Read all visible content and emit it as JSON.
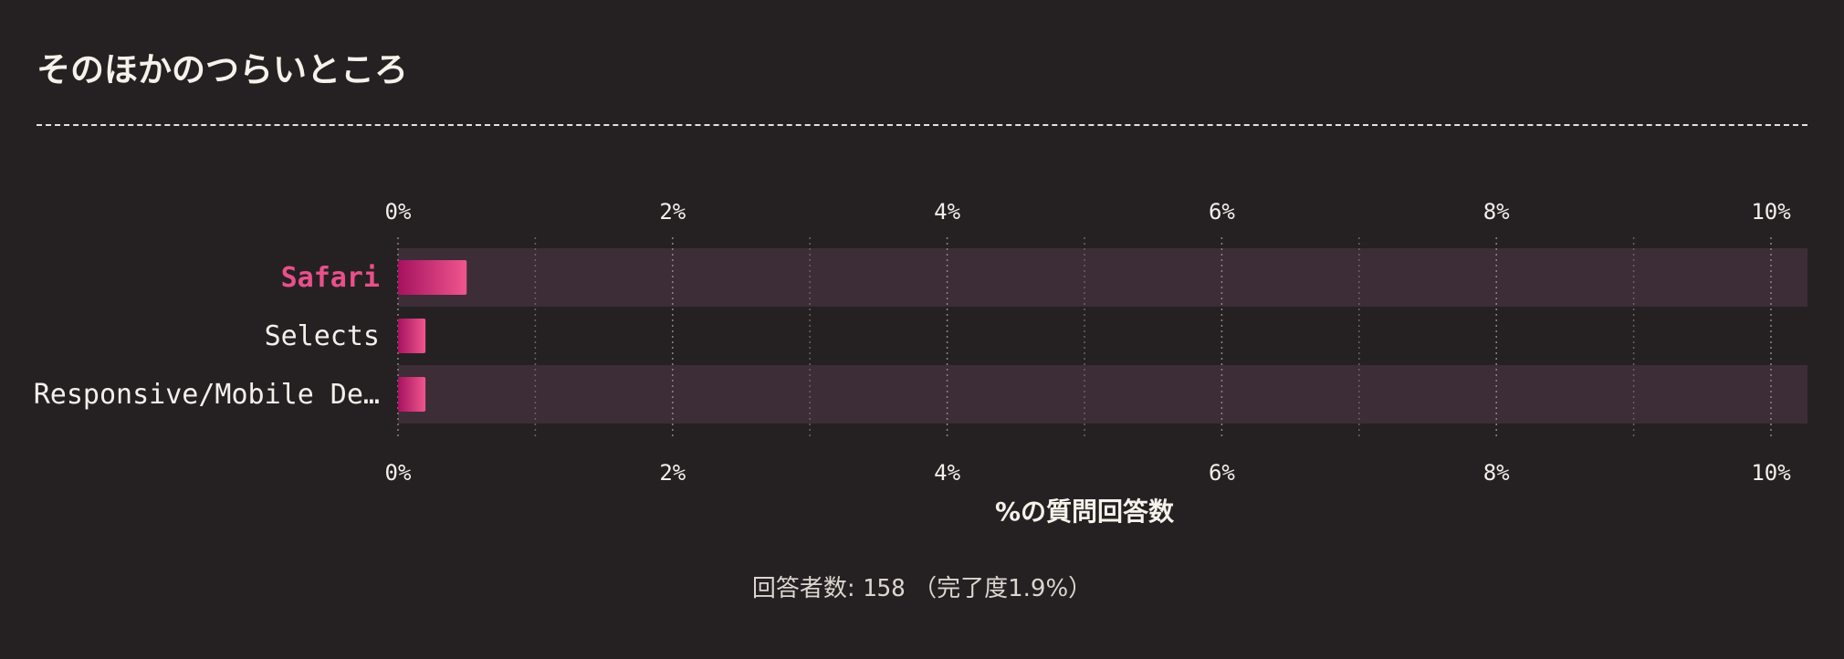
{
  "title": "そのほかのつらいところ",
  "footer": {
    "label": "回答者数:",
    "count": "158",
    "completion": "（完了度1.9%）"
  },
  "colors": {
    "background": "#252123",
    "band": "#3d2d37",
    "bar_start": "#a5125f",
    "bar_end": "#f0568e",
    "highlight": "#e9508a",
    "text": "#f3f0ec"
  },
  "chart_data": {
    "type": "bar",
    "orientation": "horizontal",
    "categories": [
      "Safari",
      "Selects",
      "Responsive/Mobile De…"
    ],
    "values": [
      0.5,
      0.2,
      0.2
    ],
    "highlighted": "Safari",
    "xlim": [
      0,
      10
    ],
    "xticks": [
      0,
      2,
      4,
      6,
      8,
      10
    ],
    "xtick_labels": [
      "0%",
      "2%",
      "4%",
      "6%",
      "8%",
      "10%"
    ],
    "xlabel": "%の質問回答数",
    "ylabel": "",
    "grid": "vertical dotted",
    "legend": "none"
  }
}
